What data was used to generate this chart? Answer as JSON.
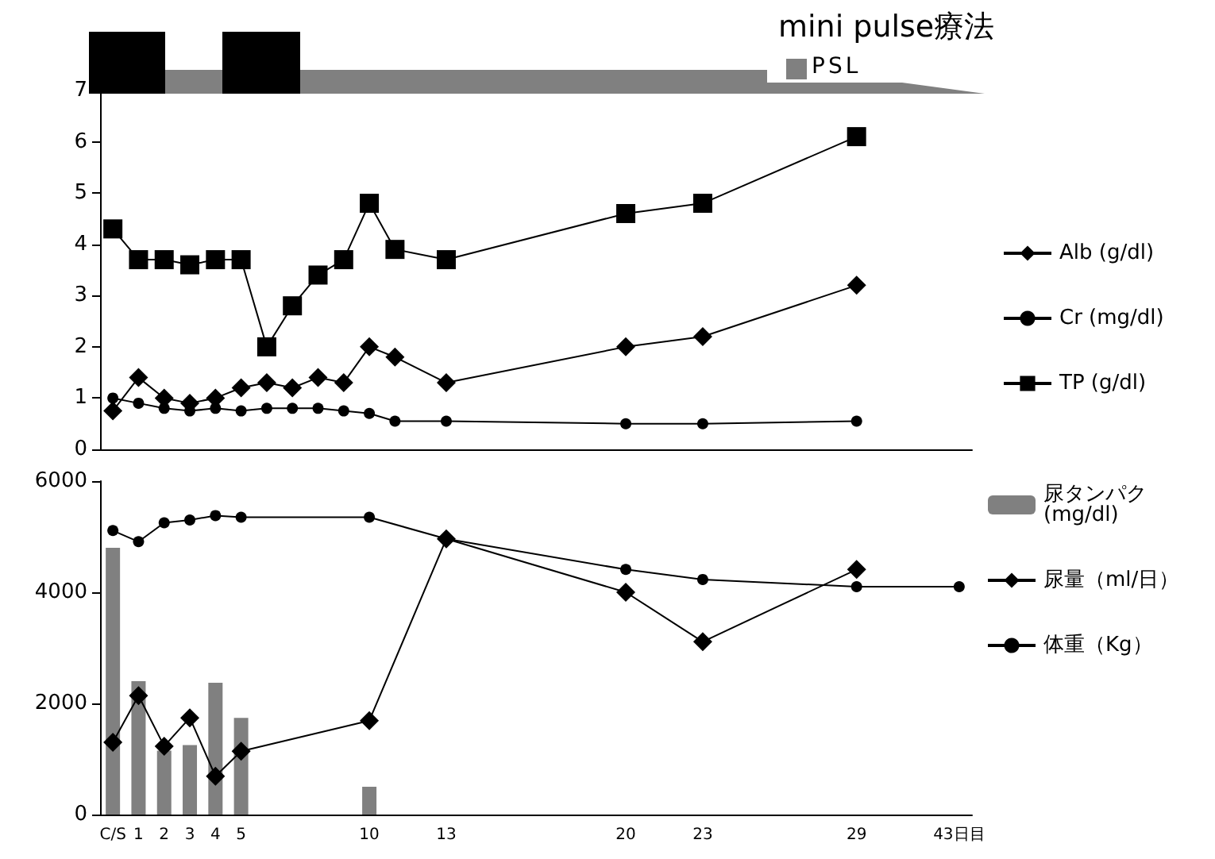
{
  "chart_data": [
    {
      "type": "line",
      "annotations": [
        "mini pulse療法",
        "PSL"
      ],
      "categories": [
        null,
        null,
        null,
        null,
        null,
        null,
        null,
        null,
        null,
        null,
        null,
        null,
        null,
        null,
        null,
        null,
        null,
        null,
        null,
        null,
        null,
        null,
        null,
        null,
        null,
        null,
        null,
        null,
        null,
        null,
        null,
        null,
        null,
        null
      ],
      "series": [
        {
          "name": "Alb (g/dl)",
          "color": "#000000",
          "marker": "diamond",
          "values": [
            0.75,
            1.4,
            1.0,
            0.9,
            1.0,
            1.2,
            1.3,
            1.2,
            1.4,
            1.3,
            2.0,
            1.8,
            null,
            1.3,
            null,
            null,
            null,
            null,
            null,
            null,
            2.0,
            null,
            null,
            2.2,
            null,
            null,
            null,
            null,
            null,
            3.2,
            null,
            null,
            null,
            null
          ]
        },
        {
          "name": "Cr (mg/dl)",
          "color": "#000000",
          "marker": "circle",
          "values": [
            1.0,
            0.9,
            0.8,
            0.75,
            0.8,
            0.75,
            0.8,
            0.8,
            0.8,
            0.75,
            0.7,
            0.55,
            null,
            0.55,
            null,
            null,
            null,
            null,
            null,
            null,
            0.5,
            null,
            null,
            0.5,
            null,
            null,
            null,
            null,
            null,
            0.55,
            null,
            null,
            null,
            null
          ]
        },
        {
          "name": "TP (g/dl)",
          "color": "#000000",
          "marker": "square",
          "values": [
            4.3,
            3.7,
            3.7,
            3.6,
            3.7,
            3.7,
            2.0,
            2.8,
            3.4,
            3.7,
            4.8,
            3.9,
            null,
            3.7,
            null,
            null,
            null,
            null,
            null,
            null,
            4.6,
            null,
            null,
            4.8,
            null,
            null,
            null,
            null,
            null,
            6.1,
            null,
            null,
            null,
            null
          ]
        }
      ],
      "ylim": [
        0,
        7
      ],
      "yticks": [
        0,
        1,
        2,
        3,
        4,
        5,
        6,
        7
      ],
      "tick_labels": "y",
      "grid": false,
      "legend": "right"
    },
    {
      "type": "line",
      "categories": [
        "C/S",
        "1",
        "2",
        "3",
        "4",
        "5",
        null,
        null,
        null,
        null,
        "10",
        null,
        null,
        "13",
        null,
        null,
        null,
        null,
        null,
        null,
        "20",
        null,
        null,
        "23",
        null,
        null,
        null,
        null,
        null,
        "29",
        null,
        null,
        null,
        "43日目"
      ],
      "series": [
        {
          "name": "尿タンパク (mg/dl)",
          "type": "bar",
          "color": "#808080",
          "values": [
            4800,
            2400,
            1150,
            1250,
            2370,
            1740,
            null,
            null,
            null,
            null,
            500,
            null,
            null,
            null,
            null,
            null,
            null,
            null,
            null,
            null,
            null,
            null,
            null,
            null,
            null,
            null,
            null,
            null,
            null,
            null,
            null,
            null,
            null,
            null
          ]
        },
        {
          "name": "尿量（ml/日）",
          "color": "#000000",
          "marker": "diamond",
          "values": [
            1300,
            2140,
            1230,
            1740,
            690,
            1140,
            null,
            null,
            null,
            null,
            1690,
            null,
            null,
            4960,
            null,
            null,
            null,
            null,
            null,
            null,
            4000,
            null,
            null,
            3110,
            null,
            null,
            null,
            null,
            null,
            4410,
            null,
            null,
            null,
            null
          ]
        },
        {
          "name": "体重（Kg）",
          "color": "#000000",
          "marker": "circle",
          "values": [
            5110,
            4910,
            5250,
            5300,
            5380,
            5350,
            null,
            null,
            null,
            null,
            5350,
            null,
            null,
            4960,
            null,
            null,
            null,
            null,
            null,
            null,
            4410,
            null,
            null,
            4230,
            null,
            null,
            null,
            null,
            null,
            4100,
            null,
            null,
            null,
            4100
          ]
        }
      ],
      "ylim": [
        0,
        6000
      ],
      "yticks": [
        0,
        2000,
        4000,
        6000
      ],
      "grid": false,
      "legend": "right"
    }
  ]
}
